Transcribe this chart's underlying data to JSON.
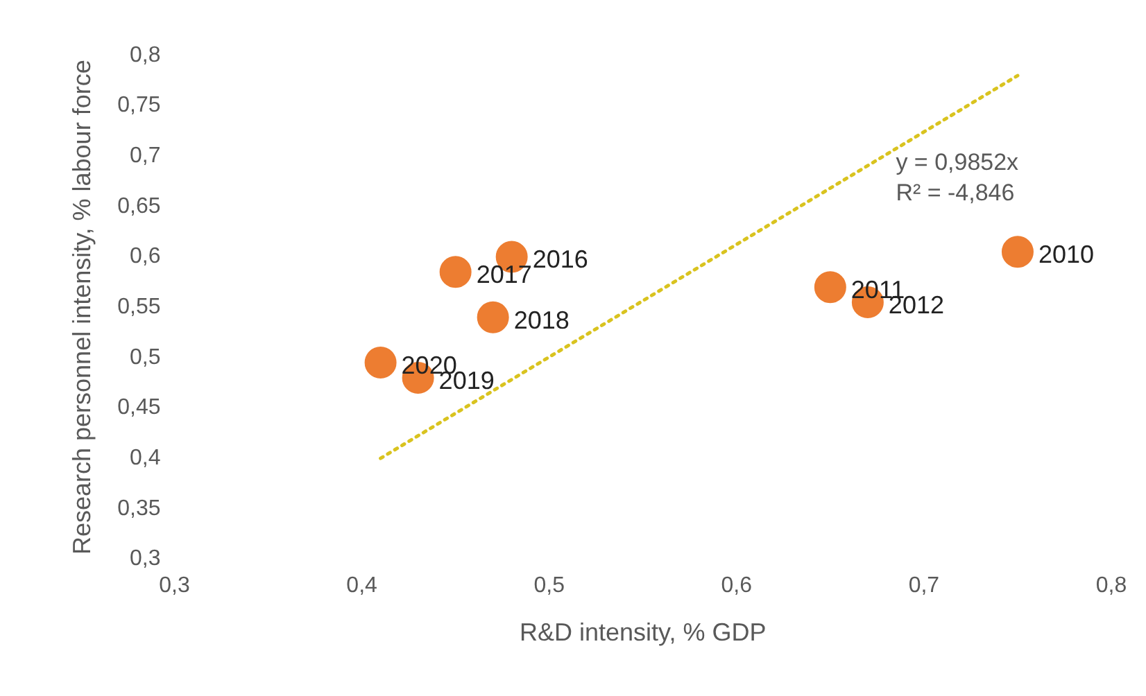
{
  "chart_data": {
    "type": "scatter",
    "xlabel": "R&D intensity, % GDP",
    "ylabel": "Research personnel intensity, % labour force",
    "xlim": [
      0.3,
      0.8
    ],
    "ylim": [
      0.3,
      0.8
    ],
    "xticks": [
      {
        "value": 0.3,
        "label": "0,3"
      },
      {
        "value": 0.4,
        "label": "0,4"
      },
      {
        "value": 0.5,
        "label": "0,5"
      },
      {
        "value": 0.6,
        "label": "0,6"
      },
      {
        "value": 0.7,
        "label": "0,7"
      },
      {
        "value": 0.8,
        "label": "0,8"
      }
    ],
    "yticks": [
      {
        "value": 0.3,
        "label": "0,3"
      },
      {
        "value": 0.35,
        "label": "0,35"
      },
      {
        "value": 0.4,
        "label": "0,4"
      },
      {
        "value": 0.45,
        "label": "0,45"
      },
      {
        "value": 0.5,
        "label": "0,5"
      },
      {
        "value": 0.55,
        "label": "0,55"
      },
      {
        "value": 0.6,
        "label": "0,6"
      },
      {
        "value": 0.65,
        "label": "0,65"
      },
      {
        "value": 0.7,
        "label": "0,7"
      },
      {
        "value": 0.75,
        "label": "0,75"
      },
      {
        "value": 0.8,
        "label": "0,8"
      }
    ],
    "grid": false,
    "legend": false,
    "series": [
      {
        "color": "#ed7d31",
        "marker": "circle",
        "x": [
          0.75,
          0.65,
          0.67,
          0.48,
          0.45,
          0.47,
          0.43,
          0.41
        ],
        "values": [
          0.605,
          0.57,
          0.555,
          0.6,
          0.585,
          0.54,
          0.48,
          0.495
        ]
      },
      {
        "type": "line",
        "color": "#d9c31f",
        "marker": "none",
        "line_style": "dotted",
        "x": [
          0.41,
          0.75
        ],
        "values": [
          0.4,
          0.78
        ]
      }
    ],
    "annotations": [
      "y = 0,9852x",
      "R² = -4,846",
      {
        "text": "2010",
        "x": 0.75,
        "y": 0.605
      },
      {
        "text": "2011",
        "x": 0.65,
        "y": 0.57
      },
      {
        "text": "2012",
        "x": 0.67,
        "y": 0.555
      },
      {
        "text": "2016",
        "x": 0.48,
        "y": 0.6
      },
      {
        "text": "2017",
        "x": 0.45,
        "y": 0.585
      },
      {
        "text": "2018",
        "x": 0.47,
        "y": 0.54
      },
      {
        "text": "2019",
        "x": 0.43,
        "y": 0.48
      },
      {
        "text": "2020",
        "x": 0.41,
        "y": 0.495
      }
    ]
  }
}
